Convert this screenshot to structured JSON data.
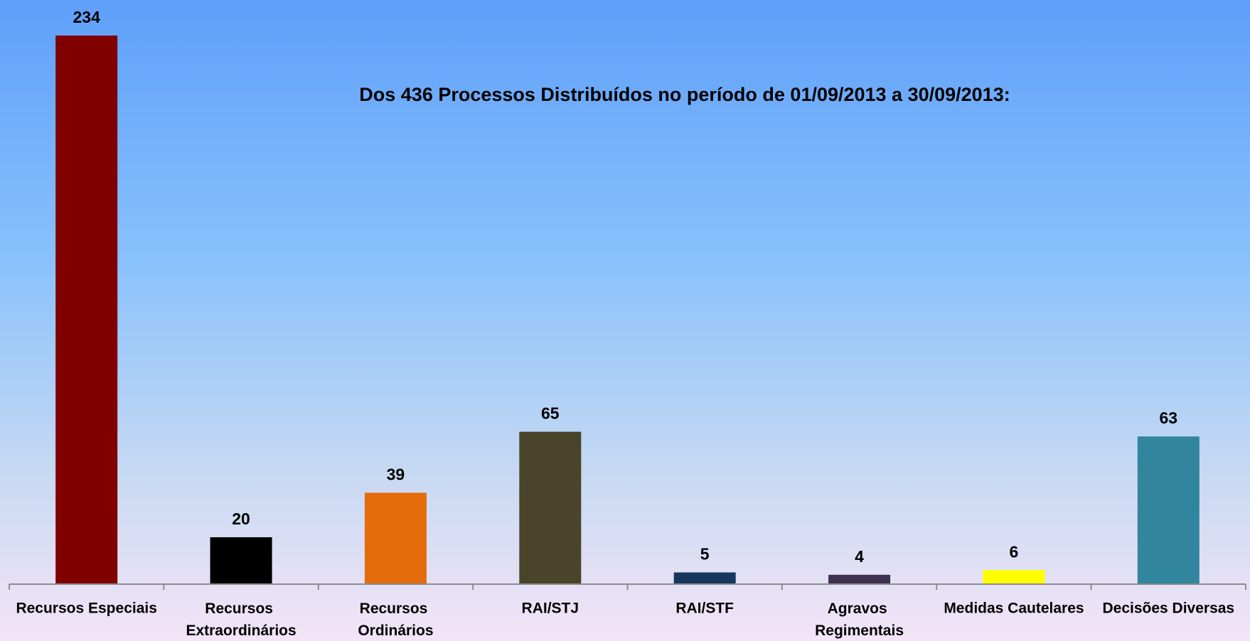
{
  "chart_data": {
    "type": "bar",
    "title": "Dos 436 Processos Distribuídos no período de 01/09/2013 a 30/09/2013:",
    "categories": [
      "Recursos Especiais",
      "Recursos Extraordinários",
      "Recursos Ordinários",
      "RAI/STJ",
      "RAI/STF",
      "Agravos Regimentais",
      "Medidas Cautelares",
      "Decisões Diversas"
    ],
    "values": [
      234,
      20,
      39,
      65,
      5,
      4,
      6,
      63
    ],
    "colors": [
      "#800000",
      "#000000",
      "#e46c0a",
      "#4a452a",
      "#17375e",
      "#3f3151",
      "#ffff00",
      "#31859c"
    ],
    "grid": false
  }
}
